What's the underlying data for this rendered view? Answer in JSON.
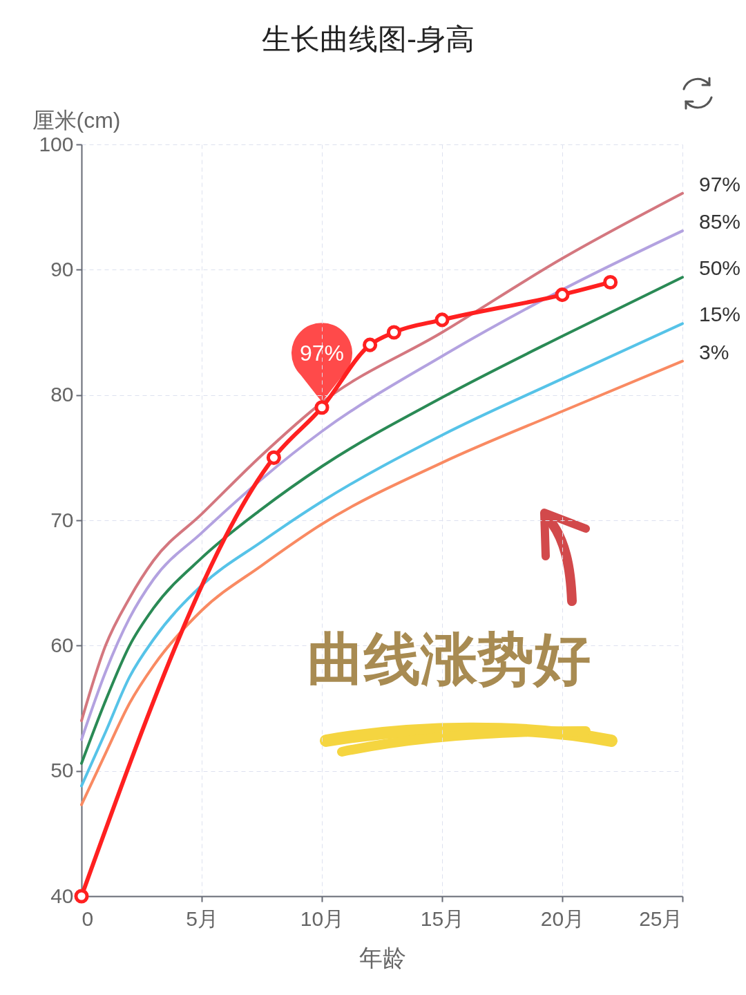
{
  "chart_data": {
    "type": "line",
    "title": "生长曲线图-身高",
    "xlabel": "年龄",
    "ylabel": "厘米(cm)",
    "xlim": [
      0,
      25
    ],
    "xticks": [
      0,
      {
        "value": 5,
        "label": "5月"
      },
      {
        "value": 10,
        "label": "10月"
      },
      {
        "value": 15,
        "label": "15月"
      },
      {
        "value": 20,
        "label": "20月"
      },
      {
        "value": 25,
        "label": "25月"
      }
    ],
    "ylim": [
      40,
      100
    ],
    "yticks": [
      40,
      50,
      60,
      70,
      80,
      90,
      100
    ],
    "grid": true,
    "line_style": "solid",
    "series": [
      {
        "name": "97%",
        "color": "#d4777f",
        "x": [
          0,
          1,
          2,
          3,
          5,
          7.5,
          10,
          15,
          20,
          25
        ],
        "values": [
          54.0,
          60.0,
          63.8,
          66.8,
          70.5,
          75.2,
          79.4,
          85.0,
          90.9,
          96.1
        ]
      },
      {
        "name": "85%",
        "color": "#b3a2e0",
        "x": [
          0,
          1,
          2,
          3,
          5,
          7.5,
          10,
          15,
          20,
          25
        ],
        "values": [
          52.5,
          57.9,
          62.2,
          65.3,
          69.0,
          73.3,
          77.1,
          83.1,
          88.4,
          93.1
        ]
      },
      {
        "name": "50%",
        "color": "#2a8a55",
        "x": [
          0,
          1,
          2,
          3,
          5,
          7.5,
          10,
          15,
          20,
          25
        ],
        "values": [
          50.6,
          55.6,
          60.0,
          63.0,
          67.0,
          70.9,
          74.3,
          79.8,
          84.7,
          89.4
        ]
      },
      {
        "name": "15%",
        "color": "#56c3e8",
        "x": [
          0,
          1,
          2,
          3,
          5,
          7.5,
          10,
          15,
          20,
          25
        ],
        "values": [
          48.8,
          53.1,
          57.5,
          60.5,
          64.8,
          68.3,
          71.5,
          76.8,
          81.3,
          85.7
        ]
      },
      {
        "name": "3%",
        "color": "#f98a62",
        "x": [
          0,
          1,
          2,
          3,
          5,
          7.5,
          10,
          15,
          20,
          25
        ],
        "values": [
          47.3,
          51.4,
          55.4,
          58.4,
          62.8,
          66.4,
          69.7,
          74.6,
          78.7,
          82.7
        ]
      },
      {
        "color": "#ff2020",
        "marker": "circle",
        "x": [
          0,
          8,
          10,
          12,
          13,
          15,
          20,
          22
        ],
        "values": [
          40,
          75,
          79,
          84,
          85,
          86,
          88,
          89
        ]
      }
    ],
    "annotations": [
      {
        "text": "97%",
        "x": 10,
        "y": 79
      },
      "曲线涨势好"
    ]
  }
}
